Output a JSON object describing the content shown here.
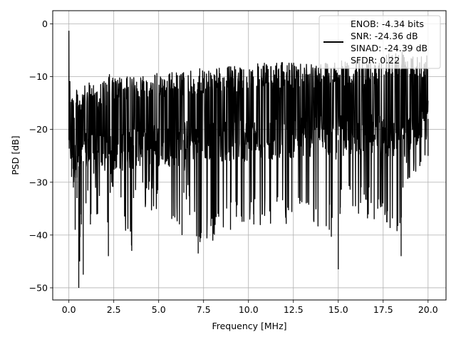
{
  "chart_data": {
    "type": "line",
    "xlabel": "Frequency [MHz]",
    "ylabel": "PSD [dB]",
    "xlim": [
      -0.9,
      21.0
    ],
    "ylim": [
      -52.3,
      2.5
    ],
    "xticks": [
      0.0,
      2.5,
      5.0,
      7.5,
      10.0,
      12.5,
      15.0,
      17.5,
      20.0
    ],
    "xtick_labels": [
      "0.0",
      "2.5",
      "5.0",
      "7.5",
      "10.0",
      "12.5",
      "15.0",
      "17.5",
      "20.0"
    ],
    "yticks": [
      0,
      -10,
      -20,
      -30,
      -40,
      -50
    ],
    "ytick_labels": [
      "0",
      "−10",
      "−20",
      "−30",
      "−40",
      "−50"
    ],
    "grid": true,
    "line_color": "#000000",
    "legend": {
      "placement": "upper-right",
      "lines": [
        "ENOB: -4.34 bits",
        "SNR: -24.36 dB",
        "SINAD: -24.39 dB",
        "SFDR: 0.22"
      ]
    },
    "series": [
      {
        "x": [
          0.0,
          0.05,
          0.1,
          0.15,
          0.25,
          0.35,
          0.45,
          0.55,
          0.6,
          0.7,
          0.8,
          0.95,
          1.2,
          1.6,
          2.2,
          2.2,
          2.3,
          3.5,
          3.6,
          6.3,
          6.4,
          7.2,
          9.0,
          10.3,
          14.5,
          15.0,
          15.1,
          17.0,
          17.2,
          18.5,
          18.6,
          20.0
        ],
        "low": [
          -1.3,
          -15.0,
          -22.0,
          -29.0,
          -31.0,
          -39.0,
          -33.0,
          -50.0,
          -45.0,
          -38.0,
          -47.5,
          -34.0,
          -38.0,
          -36.0,
          -42.0,
          -44.0,
          -32.0,
          -43.0,
          -33.0,
          -40.0,
          -32.0,
          -43.5,
          -39.0,
          -38.0,
          -39.0,
          -46.5,
          -36.0,
          -37.0,
          -35.0,
          -44.0,
          -31.0,
          -25.0
        ],
        "high": [
          -1.3,
          -6.0,
          -9.5,
          -12.0,
          -13.0,
          -14.0,
          -12.0,
          -13.0,
          -12.0,
          -12.5,
          -12.0,
          -11.5,
          -11.0,
          -11.0,
          -10.5,
          -9.0,
          -10.0,
          -10.0,
          -9.5,
          -9.0,
          -9.0,
          -8.5,
          -8.0,
          -7.5,
          -7.0,
          -7.0,
          -7.0,
          -6.5,
          -5.5,
          -5.0,
          -4.5,
          -5.5
        ],
        "noise_floor": [
          -22.0,
          -22.0,
          -23.0,
          -24.0,
          -25.0,
          -26.0,
          -25.0,
          -27.0,
          -26.0,
          -25.0,
          -26.0,
          -24.0,
          -25.0,
          -24.0,
          -25.0,
          -25.0,
          -24.0,
          -24.0,
          -23.0,
          -23.0,
          -22.0,
          -22.0,
          -22.0,
          -22.0,
          -21.0,
          -22.0,
          -21.0,
          -21.0,
          -21.0,
          -22.0,
          -21.0,
          -18.0
        ]
      }
    ]
  }
}
